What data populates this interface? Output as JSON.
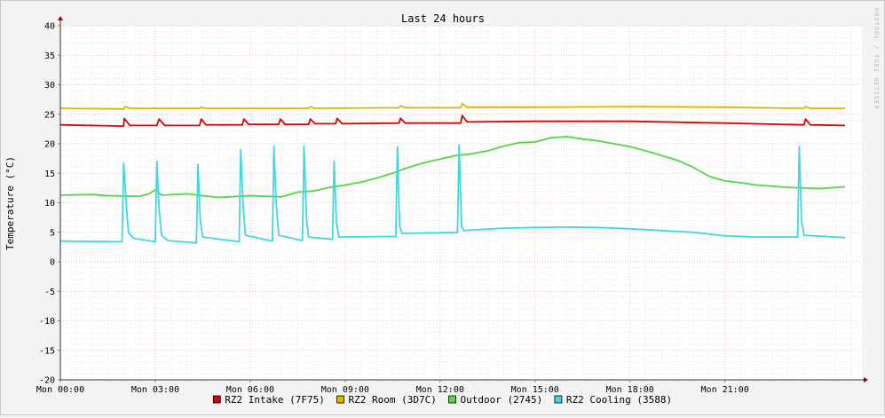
{
  "chart_data": {
    "type": "line",
    "title": "Last 24 hours",
    "ylabel": "Temperature (°C)",
    "watermark": "RRDTOOL / TOBI OETIKER",
    "xlim_hours": [
      0,
      25.33
    ],
    "ylim": [
      -20,
      40
    ],
    "y_ticks": [
      40,
      35,
      30,
      25,
      20,
      15,
      10,
      5,
      0,
      -5,
      -10,
      -15,
      -20
    ],
    "x_ticks": [
      {
        "hour": 0,
        "label": "Mon 00:00"
      },
      {
        "hour": 3,
        "label": "Mon 03:00"
      },
      {
        "hour": 6,
        "label": "Mon 06:00"
      },
      {
        "hour": 9,
        "label": "Mon 09:00"
      },
      {
        "hour": 12,
        "label": "Mon 12:00"
      },
      {
        "hour": 15,
        "label": "Mon 15:00"
      },
      {
        "hour": 18,
        "label": "Mon 18:00"
      },
      {
        "hour": 21,
        "label": "Mon 21:00"
      }
    ],
    "grid": true,
    "legend_position": "bottom",
    "series": [
      {
        "name": "RZ2 Intake (7F75)",
        "color": "#e00000",
        "points": [
          [
            0,
            23.2
          ],
          [
            2,
            23.0
          ],
          [
            2.02,
            24.3
          ],
          [
            2.2,
            23.1
          ],
          [
            3.05,
            23.1
          ],
          [
            3.12,
            24.2
          ],
          [
            3.3,
            23.1
          ],
          [
            4.4,
            23.1
          ],
          [
            4.45,
            24.2
          ],
          [
            4.6,
            23.2
          ],
          [
            5.75,
            23.2
          ],
          [
            5.8,
            24.2
          ],
          [
            5.95,
            23.3
          ],
          [
            6.9,
            23.3
          ],
          [
            6.95,
            24.2
          ],
          [
            7.1,
            23.3
          ],
          [
            7.85,
            23.3
          ],
          [
            7.9,
            24.2
          ],
          [
            8.05,
            23.4
          ],
          [
            8.7,
            23.4
          ],
          [
            8.75,
            24.3
          ],
          [
            8.9,
            23.4
          ],
          [
            10.7,
            23.5
          ],
          [
            10.75,
            24.3
          ],
          [
            10.9,
            23.5
          ],
          [
            12.65,
            23.5
          ],
          [
            12.7,
            24.8
          ],
          [
            12.85,
            23.7
          ],
          [
            15,
            23.8
          ],
          [
            18,
            23.8
          ],
          [
            21,
            23.5
          ],
          [
            23.5,
            23.2
          ],
          [
            23.55,
            24.2
          ],
          [
            23.7,
            23.2
          ],
          [
            24.8,
            23.1
          ]
        ]
      },
      {
        "name": "RZ2 Room (3D7C)",
        "color": "#e0b400",
        "points": [
          [
            0,
            26.0
          ],
          [
            2,
            25.9
          ],
          [
            2.05,
            26.3
          ],
          [
            2.2,
            26.0
          ],
          [
            4.4,
            26.0
          ],
          [
            4.45,
            26.2
          ],
          [
            4.6,
            26.0
          ],
          [
            7.85,
            26.0
          ],
          [
            7.9,
            26.3
          ],
          [
            8.05,
            26.0
          ],
          [
            10.7,
            26.1
          ],
          [
            10.75,
            26.4
          ],
          [
            10.9,
            26.1
          ],
          [
            12.65,
            26.1
          ],
          [
            12.7,
            26.8
          ],
          [
            12.85,
            26.2
          ],
          [
            15,
            26.2
          ],
          [
            18,
            26.3
          ],
          [
            21,
            26.2
          ],
          [
            23.5,
            26.0
          ],
          [
            23.55,
            26.3
          ],
          [
            23.7,
            26.0
          ],
          [
            24.8,
            26.0
          ]
        ]
      },
      {
        "name": "Outdoor (2745)",
        "color": "#50d840",
        "points": [
          [
            0,
            11.3
          ],
          [
            1,
            11.4
          ],
          [
            1.5,
            11.2
          ],
          [
            2.5,
            11.1
          ],
          [
            2.8,
            11.5
          ],
          [
            3,
            12.2
          ],
          [
            3.2,
            11.3
          ],
          [
            4,
            11.5
          ],
          [
            5,
            10.9
          ],
          [
            6,
            11.2
          ],
          [
            7,
            11.0
          ],
          [
            7.5,
            11.8
          ],
          [
            8,
            12.0
          ],
          [
            8.5,
            12.6
          ],
          [
            9,
            13.0
          ],
          [
            9.5,
            13.5
          ],
          [
            10,
            14.2
          ],
          [
            10.5,
            15.0
          ],
          [
            11,
            16.0
          ],
          [
            11.5,
            16.8
          ],
          [
            12,
            17.4
          ],
          [
            12.5,
            18.0
          ],
          [
            13,
            18.3
          ],
          [
            13.5,
            18.8
          ],
          [
            14,
            19.6
          ],
          [
            14.5,
            20.2
          ],
          [
            15,
            20.3
          ],
          [
            15.5,
            21.0
          ],
          [
            16,
            21.2
          ],
          [
            16.5,
            20.8
          ],
          [
            17,
            20.5
          ],
          [
            17.5,
            20.0
          ],
          [
            18,
            19.5
          ],
          [
            18.5,
            18.8
          ],
          [
            19,
            18.0
          ],
          [
            19.5,
            17.2
          ],
          [
            20,
            16.0
          ],
          [
            20.5,
            14.5
          ],
          [
            21,
            13.7
          ],
          [
            21.5,
            13.4
          ],
          [
            22,
            13.0
          ],
          [
            23,
            12.6
          ],
          [
            24,
            12.4
          ],
          [
            24.8,
            12.7
          ]
        ]
      },
      {
        "name": "RZ2 Cooling (3588)",
        "color": "#40d8e0",
        "points": [
          [
            0,
            3.5
          ],
          [
            1.95,
            3.4
          ],
          [
            2,
            16.7
          ],
          [
            2.08,
            10.0
          ],
          [
            2.15,
            5.0
          ],
          [
            2.3,
            4.0
          ],
          [
            3,
            3.4
          ],
          [
            3.05,
            17.0
          ],
          [
            3.12,
            9.0
          ],
          [
            3.2,
            4.5
          ],
          [
            3.4,
            3.6
          ],
          [
            4.3,
            3.2
          ],
          [
            4.35,
            16.5
          ],
          [
            4.42,
            7.0
          ],
          [
            4.5,
            4.2
          ],
          [
            5.65,
            3.4
          ],
          [
            5.7,
            19.0
          ],
          [
            5.78,
            9.0
          ],
          [
            5.85,
            4.5
          ],
          [
            6.7,
            3.5
          ],
          [
            6.75,
            19.6
          ],
          [
            6.82,
            10.0
          ],
          [
            6.9,
            4.5
          ],
          [
            7.65,
            3.6
          ],
          [
            7.7,
            19.6
          ],
          [
            7.78,
            7.0
          ],
          [
            7.85,
            4.2
          ],
          [
            8.6,
            3.8
          ],
          [
            8.65,
            17.0
          ],
          [
            8.72,
            7.0
          ],
          [
            8.8,
            4.2
          ],
          [
            10.6,
            4.3
          ],
          [
            10.65,
            19.5
          ],
          [
            10.72,
            6.0
          ],
          [
            10.8,
            4.8
          ],
          [
            12.55,
            5.0
          ],
          [
            12.6,
            19.8
          ],
          [
            12.68,
            6.0
          ],
          [
            12.75,
            5.3
          ],
          [
            14,
            5.7
          ],
          [
            15,
            5.8
          ],
          [
            16,
            5.9
          ],
          [
            17,
            5.8
          ],
          [
            18,
            5.6
          ],
          [
            19,
            5.3
          ],
          [
            20,
            5.0
          ],
          [
            21,
            4.4
          ],
          [
            22,
            4.2
          ],
          [
            23.3,
            4.2
          ],
          [
            23.35,
            19.5
          ],
          [
            23.42,
            7.0
          ],
          [
            23.5,
            4.5
          ],
          [
            24.8,
            4.1
          ]
        ]
      }
    ]
  }
}
